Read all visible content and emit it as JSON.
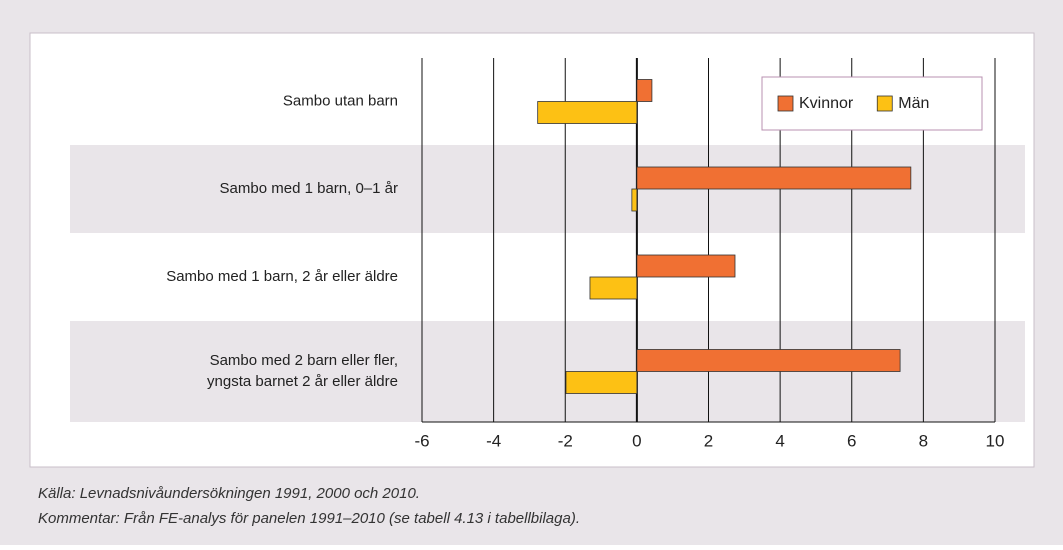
{
  "chart_data": {
    "type": "hbar",
    "categories": [
      "Sambo utan barn",
      "Sambo med 1 barn, 0–1 år",
      "Sambo med 1 barn, 2 år eller äldre",
      "Sambo med 2 barn eller fler,\nyngsta barnet 2 år eller äldre"
    ],
    "series": [
      {
        "name": "Kvinnor",
        "color": "#f07033",
        "values": [
          0.42,
          7.65,
          2.74,
          7.35
        ]
      },
      {
        "name": "Män",
        "color": "#fdc114",
        "values": [
          -2.77,
          -0.14,
          -1.31,
          -1.98
        ]
      }
    ],
    "xlim": [
      -6,
      10
    ],
    "xticks": [
      -6,
      -4,
      -2,
      0,
      2,
      4,
      6,
      8,
      10
    ],
    "grid": true,
    "legend": "upper right",
    "source": "Källa: Levnadsnivåundersökningen 1991, 2000 och 2010.",
    "comment": "Kommentar: Från FE-analys för panelen 1991–2010 (se tabell 4.13 i tabellbilaga)."
  }
}
